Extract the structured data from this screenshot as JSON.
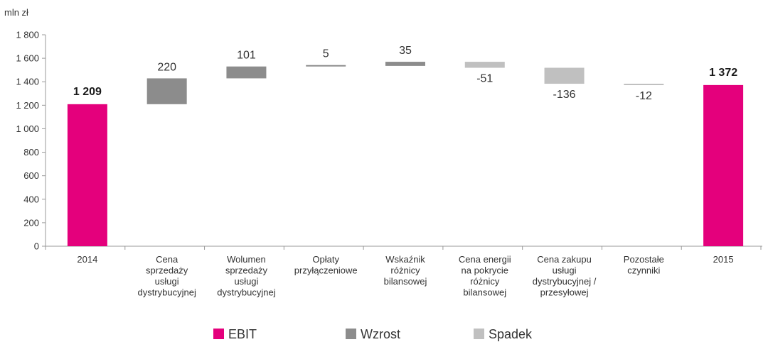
{
  "chart_data": {
    "type": "waterfall",
    "y_unit": "mln zł",
    "ylim": [
      0,
      1800
    ],
    "yticks": [
      0,
      200,
      400,
      600,
      800,
      1000,
      1200,
      1400,
      1600,
      1800
    ],
    "ytick_labels": [
      "0",
      "200",
      "400",
      "600",
      "800",
      "1 000",
      "1 200",
      "1 400",
      "1 600",
      "1 800"
    ],
    "categories": [
      [
        "2014"
      ],
      [
        "Cena",
        "sprzedaży",
        "usługi",
        "dystrybucyjnej"
      ],
      [
        "Wolumen",
        "sprzedaży",
        "usługi",
        "dystrybucyjnej"
      ],
      [
        "Opłaty",
        "przyłączeniowe"
      ],
      [
        "Wskaźnik",
        "różnicy",
        "bilansowej"
      ],
      [
        "Cena energii",
        "na pokrycie",
        "różnicy",
        "bilansowej"
      ],
      [
        "Cena zakupu",
        "usługi",
        "dystrybucyjnej /",
        "przesyłowej"
      ],
      [
        "Pozostałe",
        "czynniki"
      ],
      [
        "2015"
      ]
    ],
    "bars": [
      {
        "kind": "total",
        "value": 1209,
        "label": "1 209"
      },
      {
        "kind": "increase",
        "value": 220,
        "label": "220"
      },
      {
        "kind": "increase",
        "value": 101,
        "label": "101"
      },
      {
        "kind": "increase",
        "value": 5,
        "label": "5"
      },
      {
        "kind": "increase",
        "value": 35,
        "label": "35"
      },
      {
        "kind": "decrease",
        "value": -51,
        "label": "-51"
      },
      {
        "kind": "decrease",
        "value": -136,
        "label": "-136"
      },
      {
        "kind": "decrease",
        "value": -12,
        "label": "-12"
      },
      {
        "kind": "total",
        "value": 1372,
        "label": "1 372"
      }
    ],
    "legend": [
      {
        "key": "total",
        "label": "EBIT",
        "color": "#e4007c"
      },
      {
        "key": "increase",
        "label": "Wzrost",
        "color": "#8c8c8c"
      },
      {
        "key": "decrease",
        "label": "Spadek",
        "color": "#c0c0c0"
      }
    ],
    "legend_position": "bottom",
    "grid": false
  }
}
